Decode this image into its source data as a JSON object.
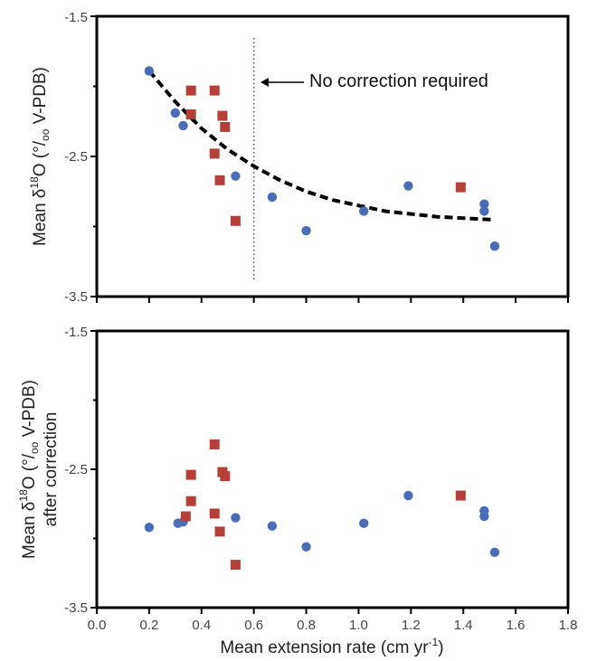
{
  "chart_data": [
    {
      "type": "scatter",
      "title": "",
      "xlabel": "",
      "ylabel": "Mean δ¹⁸O (°/₀₀ V-PDB)",
      "ylabel_parts": {
        "pre": "Mean δ",
        "sup": "18",
        "post": "O (°/",
        "sub": "oo",
        "tail": " V-PDB)"
      },
      "xlim": [
        0.0,
        1.8
      ],
      "ylim": [
        -3.5,
        -1.5
      ],
      "yticks": [
        "-1.5",
        "-2.5",
        "-3.5"
      ],
      "grid": false,
      "colors": {
        "circle": "#4a6db5",
        "square": "#b5403a",
        "fit": "#000000",
        "vline": "#555555"
      },
      "series": [
        {
          "marker": "circle",
          "points": [
            [
              0.2,
              -1.89
            ],
            [
              0.3,
              -2.19
            ],
            [
              0.33,
              -2.28
            ],
            [
              0.53,
              -2.64
            ],
            [
              0.67,
              -2.79
            ],
            [
              0.8,
              -3.03
            ],
            [
              1.02,
              -2.89
            ],
            [
              1.19,
              -2.71
            ],
            [
              1.48,
              -2.84
            ],
            [
              1.48,
              -2.89
            ],
            [
              1.52,
              -3.14
            ]
          ]
        },
        {
          "marker": "square",
          "points": [
            [
              0.36,
              -2.03
            ],
            [
              0.36,
              -2.2
            ],
            [
              0.45,
              -2.03
            ],
            [
              0.45,
              -2.48
            ],
            [
              0.48,
              -2.21
            ],
            [
              0.49,
              -2.29
            ],
            [
              0.47,
              -2.67
            ],
            [
              0.53,
              -2.96
            ],
            [
              1.39,
              -2.72
            ]
          ]
        }
      ],
      "fit_curve": [
        [
          0.2,
          -1.89
        ],
        [
          0.3,
          -2.11
        ],
        [
          0.4,
          -2.3
        ],
        [
          0.5,
          -2.45
        ],
        [
          0.6,
          -2.57
        ],
        [
          0.7,
          -2.67
        ],
        [
          0.8,
          -2.75
        ],
        [
          0.9,
          -2.81
        ],
        [
          1.0,
          -2.85
        ],
        [
          1.1,
          -2.89
        ],
        [
          1.2,
          -2.91
        ],
        [
          1.3,
          -2.93
        ],
        [
          1.4,
          -2.94
        ],
        [
          1.5,
          -2.95
        ],
        [
          1.52,
          -2.95
        ]
      ],
      "vline_x": 0.6,
      "annotation": "No correction required"
    },
    {
      "type": "scatter",
      "title": "",
      "xlabel": "Mean extension rate (cm yr⁻¹)",
      "xlabel_parts": {
        "pre": "Mean extension rate (cm yr",
        "sup": "-1",
        "post": ")"
      },
      "ylabel": "Mean δ¹⁸O (°/₀₀ V-PDB) after correction",
      "ylabel_parts": {
        "pre": "Mean δ",
        "sup": "18",
        "post": "O (°/",
        "sub": "oo",
        "tail": " V-PDB)"
      },
      "ylabel_line2": "after correction",
      "xlim": [
        0.0,
        1.8
      ],
      "ylim": [
        -3.5,
        -1.5
      ],
      "xticks": [
        "0.0",
        "0.2",
        "0.4",
        "0.6",
        "0.8",
        "1.0",
        "1.2",
        "1.4",
        "1.6",
        "1.8"
      ],
      "yticks": [
        "-1.5",
        "-2.5",
        "-3.5"
      ],
      "grid": false,
      "colors": {
        "circle": "#4a6db5",
        "square": "#b5403a"
      },
      "series": [
        {
          "marker": "circle",
          "points": [
            [
              0.2,
              -2.92
            ],
            [
              0.31,
              -2.89
            ],
            [
              0.33,
              -2.88
            ],
            [
              0.53,
              -2.85
            ],
            [
              0.67,
              -2.91
            ],
            [
              0.8,
              -3.06
            ],
            [
              1.02,
              -2.89
            ],
            [
              1.19,
              -2.69
            ],
            [
              1.48,
              -2.8
            ],
            [
              1.48,
              -2.84
            ],
            [
              1.52,
              -3.1
            ]
          ]
        },
        {
          "marker": "square",
          "points": [
            [
              0.36,
              -2.54
            ],
            [
              0.36,
              -2.73
            ],
            [
              0.34,
              -2.84
            ],
            [
              0.45,
              -2.32
            ],
            [
              0.48,
              -2.52
            ],
            [
              0.49,
              -2.55
            ],
            [
              0.45,
              -2.82
            ],
            [
              0.47,
              -2.95
            ],
            [
              0.53,
              -3.19
            ],
            [
              1.39,
              -2.69
            ]
          ]
        }
      ]
    }
  ]
}
